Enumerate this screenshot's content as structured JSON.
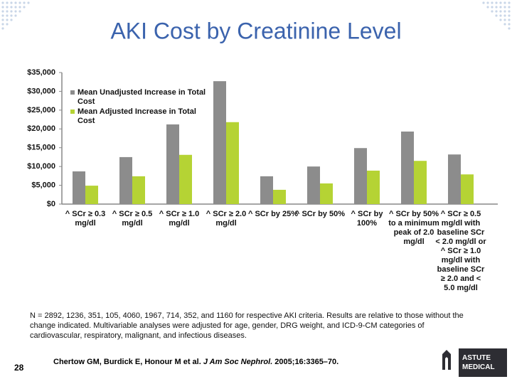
{
  "chart_data": {
    "type": "bar",
    "title": "AKI Cost by Creatinine Level",
    "categories": [
      "^ SCr ≥ 0.3 mg/dl",
      "^ SCr ≥ 0.5 mg/dl",
      "^ SCr ≥ 1.0 mg/dl",
      "^ SCr ≥ 2.0 mg/dl",
      "^ SCr by 25%",
      "^ SCr by 50%",
      "^ SCr by 100%",
      "^ SCr by 50% to a minimum peak of 2.0 mg/dl",
      "^ SCr ≥ 0.5 mg/dl with baseline SCr < 2.0 mg/dl or ^ SCr ≥ 1.0 mg/dl with baseline SCr ≥ 2.0 and < 5.0 mg/dl"
    ],
    "series": [
      {
        "name": "Mean Unadjusted Increase in Total Cost",
        "color": "#8c8c8c",
        "values": [
          8700,
          12500,
          21200,
          32700,
          7400,
          10000,
          14900,
          19300,
          13200
        ]
      },
      {
        "name": "Mean Adjusted Increase in Total Cost",
        "color": "#b5d334",
        "values": [
          4900,
          7400,
          13100,
          21800,
          3800,
          5500,
          8900,
          11500,
          7900
        ]
      }
    ],
    "ylim": [
      0,
      35000
    ],
    "yticks": [
      {
        "value": 0,
        "label": "$0"
      },
      {
        "value": 5000,
        "label": "$5,000"
      },
      {
        "value": 10000,
        "label": "$10,000"
      },
      {
        "value": 15000,
        "label": "$15,000"
      },
      {
        "value": 20000,
        "label": "$20,000"
      },
      {
        "value": 25000,
        "label": "$25,000"
      },
      {
        "value": 30000,
        "label": "$30,000"
      },
      {
        "value": 35000,
        "label": "$35,000"
      }
    ],
    "legend": "upper left"
  },
  "footnote": "N = 2892, 1236, 351, 105, 4060, 1967, 714, 352, and 1160 for respective AKI criteria.  Results are relative to those without the change indicated. Multivariable analyses were adjusted for age, gender, DRG weight, and ICD-9-CM categories of cardiovascular, respiratory, malignant, and infectious diseases.",
  "page_number": "28",
  "citation": {
    "authors": "Chertow GM, Burdick E, Honour  M et al. ",
    "journal": "J Am Soc Nephrol.",
    "details": " 2005;16:3365–70."
  },
  "logo": "ASTUTE MEDICAL"
}
